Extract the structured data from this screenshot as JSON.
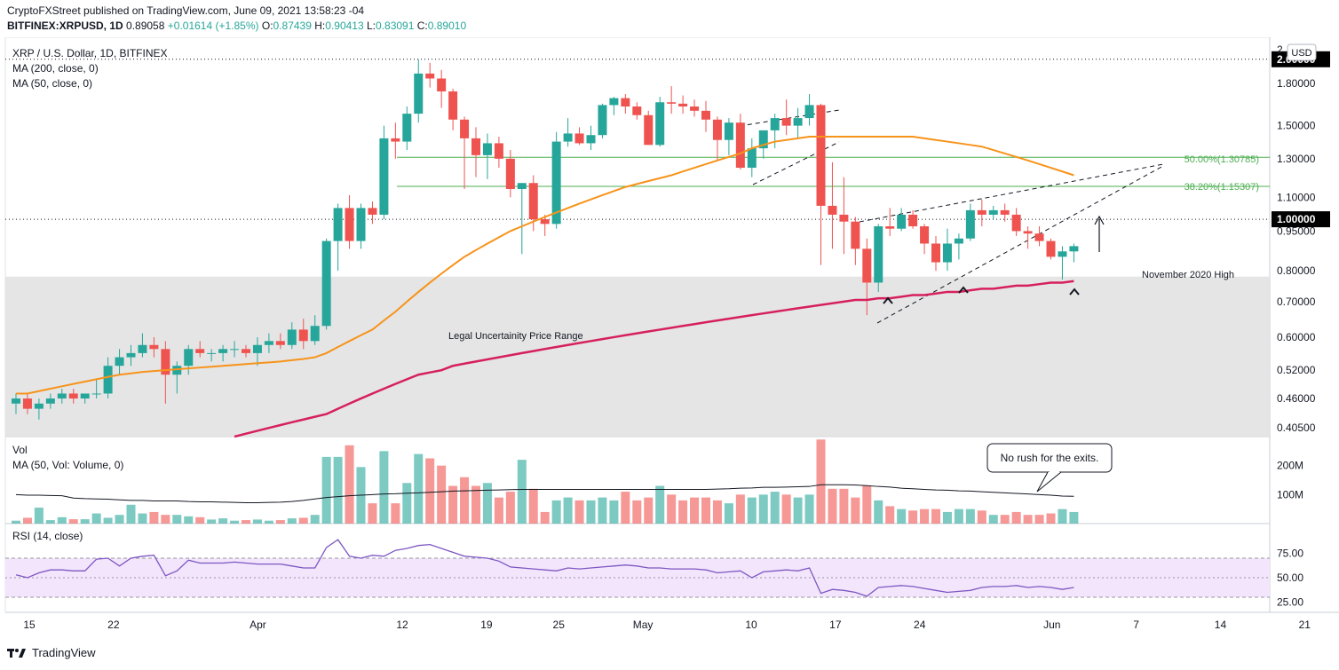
{
  "header": {
    "publisher_line": "CryptoFXStreet published on TradingView.com, June 09, 2021 13:58:23 -04",
    "symbol": "BITFINEX:XRPUSD, 1D",
    "last": "0.89058",
    "change": "+0.01614 (+1.85%)",
    "open_label": "O:",
    "open": "0.87439",
    "high_label": "H:",
    "high": "0.90413",
    "low_label": "L:",
    "low": "0.83091",
    "close_label": "C:",
    "close": "0.89010"
  },
  "legend": {
    "title": "XRP / U.S. Dollar, 1D, BITFINEX",
    "ma200": "MA (200, close, 0)",
    "ma50": "MA (50, close, 0)",
    "vol_title": "Vol",
    "vol_ma": "MA (50, Vol: Volume, 0)",
    "rsi": "RSI (14, close)"
  },
  "price_axis": {
    "currency": "USD",
    "labels": [
      "1.80000",
      "1.50000",
      "1.30000",
      "1.10000",
      "0.95000",
      "0.80000",
      "0.70000",
      "0.60000",
      "0.52000",
      "0.46000",
      "0.40500"
    ],
    "top_label": "2.",
    "highlight_labels": [
      "2.00000",
      "1.00000"
    ]
  },
  "volume_axis": {
    "labels": [
      "200M",
      "100M"
    ]
  },
  "rsi_axis": {
    "labels": [
      "75.00",
      "50.00",
      "25.00"
    ]
  },
  "time_axis": {
    "labels": [
      "15",
      "22",
      "Apr",
      "12",
      "19",
      "25",
      "May",
      "10",
      "17",
      "24",
      "Jun",
      "7",
      "14",
      "21"
    ]
  },
  "annotations": {
    "fib50": "50.00%(1.30785)",
    "fib382": "38.20%(1.15307)",
    "nov_high": "November 2020 High",
    "legal_range": "Legal Uncertainity  Price Range",
    "callout": "No rush for the exits."
  },
  "colors": {
    "up": "#26a69a",
    "down": "#ef5350",
    "ma50": "#f7931a",
    "ma200": "#d6205c",
    "fib": "#4caf50",
    "zone": "#e0e0e0",
    "rsi_band": "#f3e5fc",
    "rsi_line": "#7e57c2"
  },
  "footer": {
    "brand": "TradingView"
  },
  "chart_data": {
    "type": "candlestick",
    "scale": "log",
    "ylim": [
      0.39,
      2.2
    ],
    "rsi_band": [
      30,
      70
    ],
    "fib_levels": [
      1.30785,
      1.15307
    ],
    "legal_range": [
      0.39,
      0.78
    ],
    "ohlc": [
      [
        0.45,
        0.47,
        0.43,
        0.46
      ],
      [
        0.46,
        0.47,
        0.43,
        0.44
      ],
      [
        0.44,
        0.46,
        0.42,
        0.45
      ],
      [
        0.45,
        0.47,
        0.44,
        0.46
      ],
      [
        0.46,
        0.48,
        0.45,
        0.47
      ],
      [
        0.47,
        0.48,
        0.45,
        0.46
      ],
      [
        0.46,
        0.47,
        0.45,
        0.47
      ],
      [
        0.47,
        0.5,
        0.46,
        0.47
      ],
      [
        0.47,
        0.55,
        0.46,
        0.53
      ],
      [
        0.53,
        0.57,
        0.51,
        0.55
      ],
      [
        0.55,
        0.58,
        0.53,
        0.56
      ],
      [
        0.56,
        0.61,
        0.55,
        0.58
      ],
      [
        0.58,
        0.6,
        0.55,
        0.57
      ],
      [
        0.57,
        0.59,
        0.45,
        0.51
      ],
      [
        0.51,
        0.54,
        0.47,
        0.53
      ],
      [
        0.53,
        0.58,
        0.51,
        0.57
      ],
      [
        0.57,
        0.59,
        0.55,
        0.56
      ],
      [
        0.56,
        0.57,
        0.54,
        0.56
      ],
      [
        0.56,
        0.58,
        0.54,
        0.57
      ],
      [
        0.57,
        0.59,
        0.55,
        0.57
      ],
      [
        0.57,
        0.58,
        0.55,
        0.56
      ],
      [
        0.56,
        0.6,
        0.53,
        0.58
      ],
      [
        0.58,
        0.61,
        0.56,
        0.59
      ],
      [
        0.59,
        0.61,
        0.57,
        0.58
      ],
      [
        0.58,
        0.64,
        0.57,
        0.62
      ],
      [
        0.62,
        0.65,
        0.57,
        0.59
      ],
      [
        0.59,
        0.66,
        0.58,
        0.63
      ],
      [
        0.63,
        0.92,
        0.62,
        0.91
      ],
      [
        0.91,
        1.07,
        0.8,
        1.05
      ],
      [
        1.05,
        1.11,
        0.88,
        0.91
      ],
      [
        0.91,
        1.07,
        0.88,
        1.05
      ],
      [
        1.05,
        1.08,
        0.98,
        1.02
      ],
      [
        1.02,
        1.5,
        1.0,
        1.42
      ],
      [
        1.42,
        1.52,
        1.3,
        1.4
      ],
      [
        1.4,
        1.63,
        1.35,
        1.58
      ],
      [
        1.58,
        2.0,
        1.52,
        1.88
      ],
      [
        1.88,
        1.97,
        1.77,
        1.84
      ],
      [
        1.84,
        1.91,
        1.62,
        1.74
      ],
      [
        1.74,
        1.76,
        1.47,
        1.54
      ],
      [
        1.54,
        1.56,
        1.14,
        1.42
      ],
      [
        1.42,
        1.49,
        1.2,
        1.32
      ],
      [
        1.32,
        1.45,
        1.19,
        1.39
      ],
      [
        1.39,
        1.43,
        1.25,
        1.3
      ],
      [
        1.3,
        1.35,
        1.1,
        1.14
      ],
      [
        1.14,
        1.17,
        0.86,
        1.17
      ],
      [
        1.17,
        1.21,
        0.95,
        1.0
      ],
      [
        1.0,
        1.02,
        0.93,
        0.98
      ],
      [
        0.98,
        1.46,
        0.96,
        1.4
      ],
      [
        1.4,
        1.55,
        1.37,
        1.45
      ],
      [
        1.45,
        1.49,
        1.38,
        1.39
      ],
      [
        1.39,
        1.5,
        1.35,
        1.44
      ],
      [
        1.44,
        1.65,
        1.42,
        1.64
      ],
      [
        1.64,
        1.7,
        1.57,
        1.69
      ],
      [
        1.69,
        1.72,
        1.58,
        1.63
      ],
      [
        1.63,
        1.66,
        1.54,
        1.57
      ],
      [
        1.57,
        1.6,
        1.38,
        1.38
      ],
      [
        1.38,
        1.7,
        1.37,
        1.66
      ],
      [
        1.66,
        1.78,
        1.58,
        1.65
      ],
      [
        1.65,
        1.71,
        1.58,
        1.63
      ],
      [
        1.63,
        1.68,
        1.56,
        1.6
      ],
      [
        1.6,
        1.67,
        1.46,
        1.54
      ],
      [
        1.54,
        1.56,
        1.29,
        1.41
      ],
      [
        1.41,
        1.55,
        1.32,
        1.52
      ],
      [
        1.52,
        1.58,
        1.24,
        1.25
      ],
      [
        1.25,
        1.42,
        1.2,
        1.36
      ],
      [
        1.36,
        1.46,
        1.3,
        1.47
      ],
      [
        1.47,
        1.58,
        1.36,
        1.55
      ],
      [
        1.55,
        1.68,
        1.44,
        1.5
      ],
      [
        1.5,
        1.62,
        1.42,
        1.55
      ],
      [
        1.55,
        1.72,
        1.5,
        1.64
      ],
      [
        1.64,
        1.65,
        0.82,
        1.06
      ],
      [
        1.06,
        1.28,
        0.88,
        1.02
      ],
      [
        1.02,
        1.2,
        0.86,
        0.99
      ],
      [
        0.99,
        1.01,
        0.82,
        0.88
      ],
      [
        0.88,
        0.92,
        0.66,
        0.76
      ],
      [
        0.76,
        0.98,
        0.73,
        0.97
      ],
      [
        0.97,
        1.05,
        0.93,
        0.96
      ],
      [
        0.96,
        1.05,
        0.95,
        1.02
      ],
      [
        1.02,
        1.04,
        0.96,
        0.97
      ],
      [
        0.97,
        0.98,
        0.86,
        0.9
      ],
      [
        0.9,
        0.93,
        0.8,
        0.83
      ],
      [
        0.83,
        0.96,
        0.8,
        0.9
      ],
      [
        0.9,
        0.94,
        0.84,
        0.92
      ],
      [
        0.92,
        1.07,
        0.91,
        1.04
      ],
      [
        1.04,
        1.09,
        0.97,
        1.02
      ],
      [
        1.02,
        1.06,
        1.0,
        1.04
      ],
      [
        1.04,
        1.07,
        0.99,
        1.02
      ],
      [
        1.02,
        1.05,
        0.93,
        0.95
      ],
      [
        0.95,
        0.97,
        0.88,
        0.94
      ],
      [
        0.94,
        0.97,
        0.89,
        0.91
      ],
      [
        0.91,
        0.92,
        0.84,
        0.85
      ],
      [
        0.85,
        0.89,
        0.77,
        0.87
      ],
      [
        0.87,
        0.9,
        0.83,
        0.89
      ]
    ],
    "volume": [
      10,
      20,
      55,
      12,
      22,
      15,
      15,
      35,
      20,
      30,
      65,
      35,
      40,
      30,
      30,
      25,
      22,
      14,
      18,
      10,
      12,
      14,
      10,
      12,
      18,
      20,
      30,
      230,
      230,
      270,
      195,
      70,
      250,
      70,
      140,
      240,
      225,
      200,
      130,
      160,
      130,
      140,
      90,
      110,
      220,
      120,
      40,
      80,
      90,
      80,
      80,
      90,
      80,
      110,
      80,
      90,
      130,
      100,
      80,
      90,
      90,
      80,
      70,
      100,
      90,
      100,
      110,
      100,
      90,
      100,
      290,
      120,
      120,
      90,
      130,
      80,
      60,
      50,
      45,
      50,
      50,
      40,
      50,
      50,
      45,
      30,
      30,
      40,
      30,
      30,
      35,
      50,
      40
    ],
    "vol_ma": [
      100,
      98,
      98,
      97,
      96,
      88,
      86,
      85,
      84,
      82,
      80,
      80,
      78,
      78,
      78,
      76,
      75,
      75,
      74,
      73,
      72,
      72,
      73,
      74,
      76,
      80,
      85,
      90,
      93,
      96,
      98,
      100,
      102,
      103,
      105,
      106,
      108,
      110,
      112,
      113,
      114,
      115,
      116,
      117,
      118,
      118,
      118,
      118,
      118,
      118,
      118,
      118,
      118,
      118,
      118,
      118,
      118,
      118,
      118,
      118,
      118,
      119,
      120,
      122,
      123,
      125,
      125,
      126,
      127,
      128,
      134,
      134,
      134,
      133,
      131,
      128,
      126,
      122,
      120,
      118,
      116,
      115,
      113,
      112,
      110,
      108,
      106,
      104,
      102,
      100,
      98,
      95,
      94
    ],
    "rsi": [
      53,
      50,
      55,
      58,
      58,
      57,
      57,
      69,
      70,
      62,
      70,
      72,
      73,
      52,
      57,
      68,
      65,
      65,
      65,
      66,
      65,
      64,
      64,
      64,
      62,
      60,
      60,
      81,
      89,
      72,
      70,
      73,
      72,
      78,
      80,
      83,
      84,
      80,
      76,
      72,
      71,
      70,
      67,
      61,
      60,
      59,
      58,
      57,
      60,
      59,
      60,
      61,
      62,
      63,
      62,
      60,
      60,
      59,
      59,
      59,
      58,
      55,
      56,
      57,
      50,
      56,
      57,
      58,
      57,
      60,
      34,
      38,
      37,
      35,
      31,
      40,
      41,
      42,
      41,
      39,
      37,
      35,
      36,
      37,
      40,
      41,
      41,
      42,
      40,
      41,
      40,
      38,
      40
    ],
    "ma50": [
      0.47,
      0.47,
      0.475,
      0.48,
      0.485,
      0.49,
      0.495,
      0.5,
      0.505,
      0.51,
      0.513,
      0.516,
      0.518,
      0.52,
      0.522,
      0.524,
      0.526,
      0.528,
      0.53,
      0.532,
      0.534,
      0.536,
      0.538,
      0.54,
      0.543,
      0.546,
      0.55,
      0.56,
      0.575,
      0.59,
      0.605,
      0.62,
      0.645,
      0.67,
      0.7,
      0.73,
      0.76,
      0.79,
      0.82,
      0.85,
      0.875,
      0.9,
      0.925,
      0.95,
      0.97,
      0.99,
      1.01,
      1.03,
      1.05,
      1.07,
      1.09,
      1.11,
      1.13,
      1.15,
      1.165,
      1.18,
      1.195,
      1.21,
      1.23,
      1.25,
      1.27,
      1.29,
      1.31,
      1.33,
      1.36,
      1.38,
      1.4,
      1.41,
      1.42,
      1.43,
      1.43,
      1.43,
      1.43,
      1.43,
      1.43,
      1.43,
      1.43,
      1.43,
      1.43,
      1.42,
      1.41,
      1.4,
      1.39,
      1.38,
      1.37,
      1.35,
      1.33,
      1.31,
      1.29,
      1.27,
      1.25,
      1.23,
      1.21
    ],
    "ma200": [
      0.31,
      0.31,
      0.315,
      0.32,
      0.32,
      0.325,
      0.33,
      0.33,
      0.335,
      0.34,
      0.345,
      0.35,
      0.355,
      0.36,
      0.365,
      0.37,
      0.375,
      0.38,
      0.385,
      0.39,
      0.395,
      0.4,
      0.405,
      0.41,
      0.415,
      0.42,
      0.425,
      0.43,
      0.44,
      0.45,
      0.46,
      0.47,
      0.48,
      0.49,
      0.5,
      0.51,
      0.515,
      0.52,
      0.53,
      0.535,
      0.54,
      0.545,
      0.55,
      0.555,
      0.56,
      0.565,
      0.57,
      0.575,
      0.58,
      0.585,
      0.59,
      0.595,
      0.6,
      0.605,
      0.61,
      0.615,
      0.62,
      0.625,
      0.63,
      0.635,
      0.64,
      0.645,
      0.65,
      0.655,
      0.66,
      0.665,
      0.67,
      0.675,
      0.68,
      0.685,
      0.69,
      0.695,
      0.7,
      0.705,
      0.705,
      0.71,
      0.71,
      0.715,
      0.72,
      0.72,
      0.725,
      0.73,
      0.73,
      0.735,
      0.74,
      0.74,
      0.745,
      0.75,
      0.75,
      0.755,
      0.76,
      0.76,
      0.765
    ]
  }
}
